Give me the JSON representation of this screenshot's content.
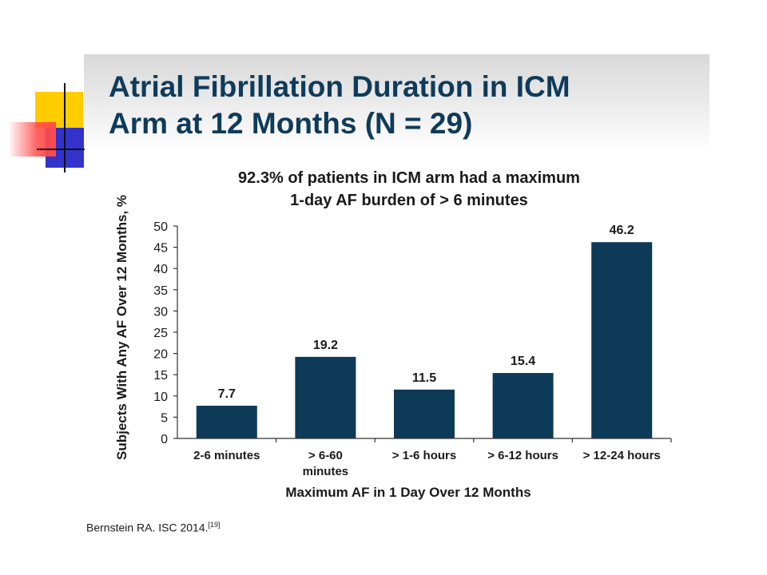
{
  "slide": {
    "title_line1": "Atrial Fibrillation Duration in ICM",
    "title_line2": "Arm at 12 Months (N = 29)",
    "citation": "Bernstein RA. ISC 2014.",
    "citation_ref": "[19]",
    "colors": {
      "title": "#0f3b5a",
      "bar": "#0d3a57",
      "logo_yellow": "#ffcc00",
      "logo_blue": "#3333cc",
      "logo_red": "#ff4d4d"
    }
  },
  "chart_data": {
    "type": "bar",
    "title_lines": [
      "92.3% of patients in ICM arm had a maximum",
      "1-day AF burden of > 6 minutes"
    ],
    "categories": [
      [
        "2-6 minutes"
      ],
      [
        "> 6-60",
        "minutes"
      ],
      [
        "> 1-6 hours"
      ],
      [
        "> 6-12 hours"
      ],
      [
        "> 12-24 hours"
      ]
    ],
    "values": [
      7.7,
      19.2,
      11.5,
      15.4,
      46.2
    ],
    "value_labels": [
      "7.7",
      "19.2",
      "11.5",
      "15.4",
      "46.2"
    ],
    "xlabel": "Maximum AF in 1 Day Over 12 Months",
    "ylabel": "Subjects With Any AF Over 12 Months, %",
    "ylim": [
      0,
      50
    ],
    "yticks": [
      0,
      5,
      10,
      15,
      20,
      25,
      30,
      35,
      40,
      45,
      50
    ],
    "grid": false,
    "legend": "none"
  }
}
